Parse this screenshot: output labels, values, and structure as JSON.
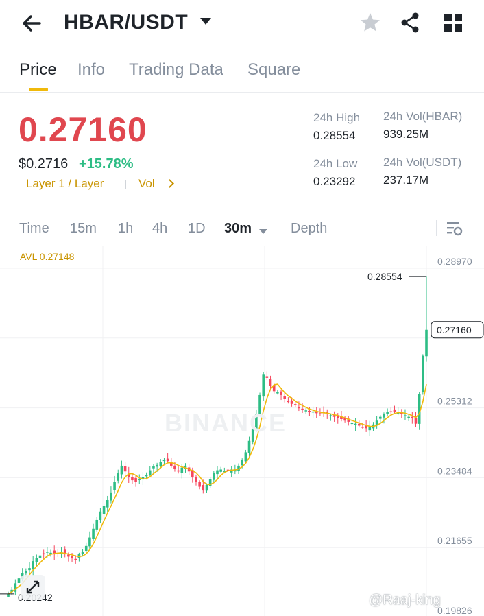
{
  "header": {
    "pair": "HBAR/USDT",
    "icons": [
      "back-arrow-icon",
      "caret-down-icon",
      "star-icon",
      "share-icon",
      "grid-icon"
    ]
  },
  "tabs": [
    {
      "label": "Price",
      "active": true
    },
    {
      "label": "Info",
      "active": false
    },
    {
      "label": "Trading Data",
      "active": false
    },
    {
      "label": "Square",
      "active": false
    }
  ],
  "price": {
    "last": "0.27160",
    "usd": "$0.2716",
    "change": "+15.78%",
    "tag1": "Layer 1 / Layer",
    "tag2": "Vol",
    "color_down": "#e0474f",
    "color_up": "#2ebd85"
  },
  "stats": {
    "high_label": "24h High",
    "high": "0.28554",
    "low_label": "24h Low",
    "low": "0.23292",
    "vol_base_label": "24h Vol(HBAR)",
    "vol_base": "939.25M",
    "vol_quote_label": "24h Vol(USDT)",
    "vol_quote": "237.17M"
  },
  "intervals": {
    "items": [
      {
        "label": "Time",
        "active": false
      },
      {
        "label": "15m",
        "active": false
      },
      {
        "label": "1h",
        "active": false
      },
      {
        "label": "4h",
        "active": false
      },
      {
        "label": "1D",
        "active": false
      },
      {
        "label": "30m",
        "active": true
      },
      {
        "label": "Depth",
        "active": false
      }
    ],
    "settings_icon": "chart-settings-icon"
  },
  "chart_data": {
    "type": "candlestick",
    "avl": "AVL 0.27148",
    "y_ticks": [
      "0.28970",
      "0.27141",
      "0.25312",
      "0.23484",
      "0.21655",
      "0.19826"
    ],
    "ylim": [
      0.19826,
      0.2897
    ],
    "high_label": "0.28554",
    "low_label": "0.20242",
    "current_label": "0.27160",
    "closes": [
      0.2024,
      0.2035,
      0.2052,
      0.2065,
      0.2078,
      0.2085,
      0.2092,
      0.211,
      0.2118,
      0.2125,
      0.213,
      0.2135,
      0.2132,
      0.2128,
      0.213,
      0.2135,
      0.2128,
      0.2122,
      0.2118,
      0.2115,
      0.2128,
      0.2135,
      0.215,
      0.2172,
      0.2195,
      0.2218,
      0.224,
      0.2255,
      0.227,
      0.229,
      0.2318,
      0.234,
      0.236,
      0.2345,
      0.233,
      0.2322,
      0.2318,
      0.2325,
      0.233,
      0.2335,
      0.2348,
      0.2358,
      0.2362,
      0.237,
      0.2375,
      0.2372,
      0.236,
      0.2352,
      0.2345,
      0.2355,
      0.236,
      0.2345,
      0.233,
      0.2318,
      0.2305,
      0.2295,
      0.231,
      0.2325,
      0.2342,
      0.2348,
      0.235,
      0.2346,
      0.2348,
      0.235,
      0.2352,
      0.236,
      0.2375,
      0.2395,
      0.2425,
      0.2455,
      0.2495,
      0.2545,
      0.26,
      0.259,
      0.257,
      0.2555,
      0.2552,
      0.2545,
      0.2535,
      0.2528,
      0.2522,
      0.2518,
      0.2512,
      0.2508,
      0.2505,
      0.25,
      0.2502,
      0.2498,
      0.2495,
      0.2498,
      0.2495,
      0.2492,
      0.2488,
      0.2485,
      0.2482,
      0.2478,
      0.2475,
      0.2472,
      0.247,
      0.2465,
      0.2462,
      0.2458,
      0.2462,
      0.2468,
      0.2478,
      0.2488,
      0.2495,
      0.25,
      0.2502,
      0.25,
      0.2498,
      0.2495,
      0.2492,
      0.2488,
      0.2485,
      0.247,
      0.2548,
      0.2648,
      0.2716
    ],
    "color_up": "#2ebd85",
    "color_down": "#f6465d",
    "ma_color": "#f0b90b",
    "watermark": "BINANCE",
    "credit": "@Raaj-king"
  }
}
